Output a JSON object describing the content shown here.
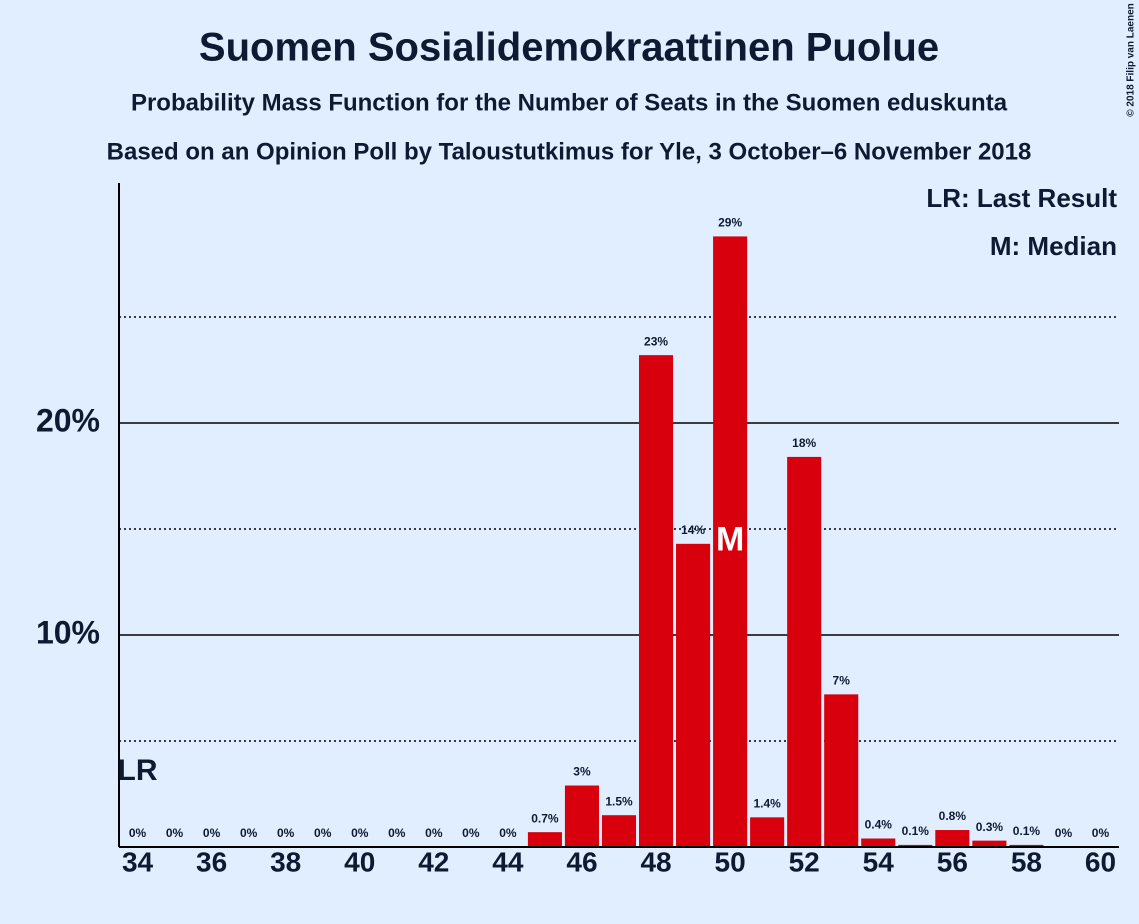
{
  "chart_data": {
    "type": "bar",
    "title": "Suomen Sosialidemokraattinen Puolue",
    "subtitle": "Probability Mass Function for the Number of Seats in the Suomen eduskunta",
    "subtitle2": "Based on an Opinion Poll by Taloustutkimus for Yle, 3 October–6 November 2018",
    "copyright": "© 2018 Filip van Laenen",
    "x": [
      34,
      35,
      36,
      37,
      38,
      39,
      40,
      41,
      42,
      43,
      44,
      45,
      46,
      47,
      48,
      49,
      50,
      51,
      52,
      53,
      54,
      55,
      56,
      57,
      58,
      59,
      60
    ],
    "values": [
      0,
      0,
      0,
      0,
      0,
      0,
      0,
      0,
      0,
      0,
      0,
      0.7,
      2.9,
      1.5,
      23.2,
      14.3,
      28.8,
      1.4,
      18.4,
      7.2,
      0.4,
      0.1,
      0.8,
      0.3,
      0.1,
      0,
      0
    ],
    "value_labels": [
      "0%",
      "0%",
      "0%",
      "0%",
      "0%",
      "0%",
      "0%",
      "0%",
      "0%",
      "0%",
      "0%",
      "0.7%",
      "3%",
      "1.5%",
      "23%",
      "14%",
      "29%",
      "1.4%",
      "18%",
      "7%",
      "0.4%",
      "0.1%",
      "0.8%",
      "0.3%",
      "0.1%",
      "0%",
      "0%"
    ],
    "color": "#d7000c",
    "xlim": [
      33.5,
      60.5
    ],
    "xticks": [
      34,
      36,
      38,
      40,
      42,
      44,
      46,
      48,
      50,
      52,
      54,
      56,
      58,
      60
    ],
    "ylim": [
      0,
      31.4
    ],
    "yticks": [
      {
        "value": 10,
        "label": "10%"
      },
      {
        "value": 20,
        "label": "20%"
      }
    ],
    "minor_grid": [
      5,
      15,
      25
    ],
    "grid": true,
    "annotations": {
      "last_result": {
        "label": "LR",
        "x": 34
      },
      "median": {
        "label": "M",
        "x": 50
      }
    },
    "legend": [
      "LR: Last Result",
      "M: Median"
    ]
  }
}
